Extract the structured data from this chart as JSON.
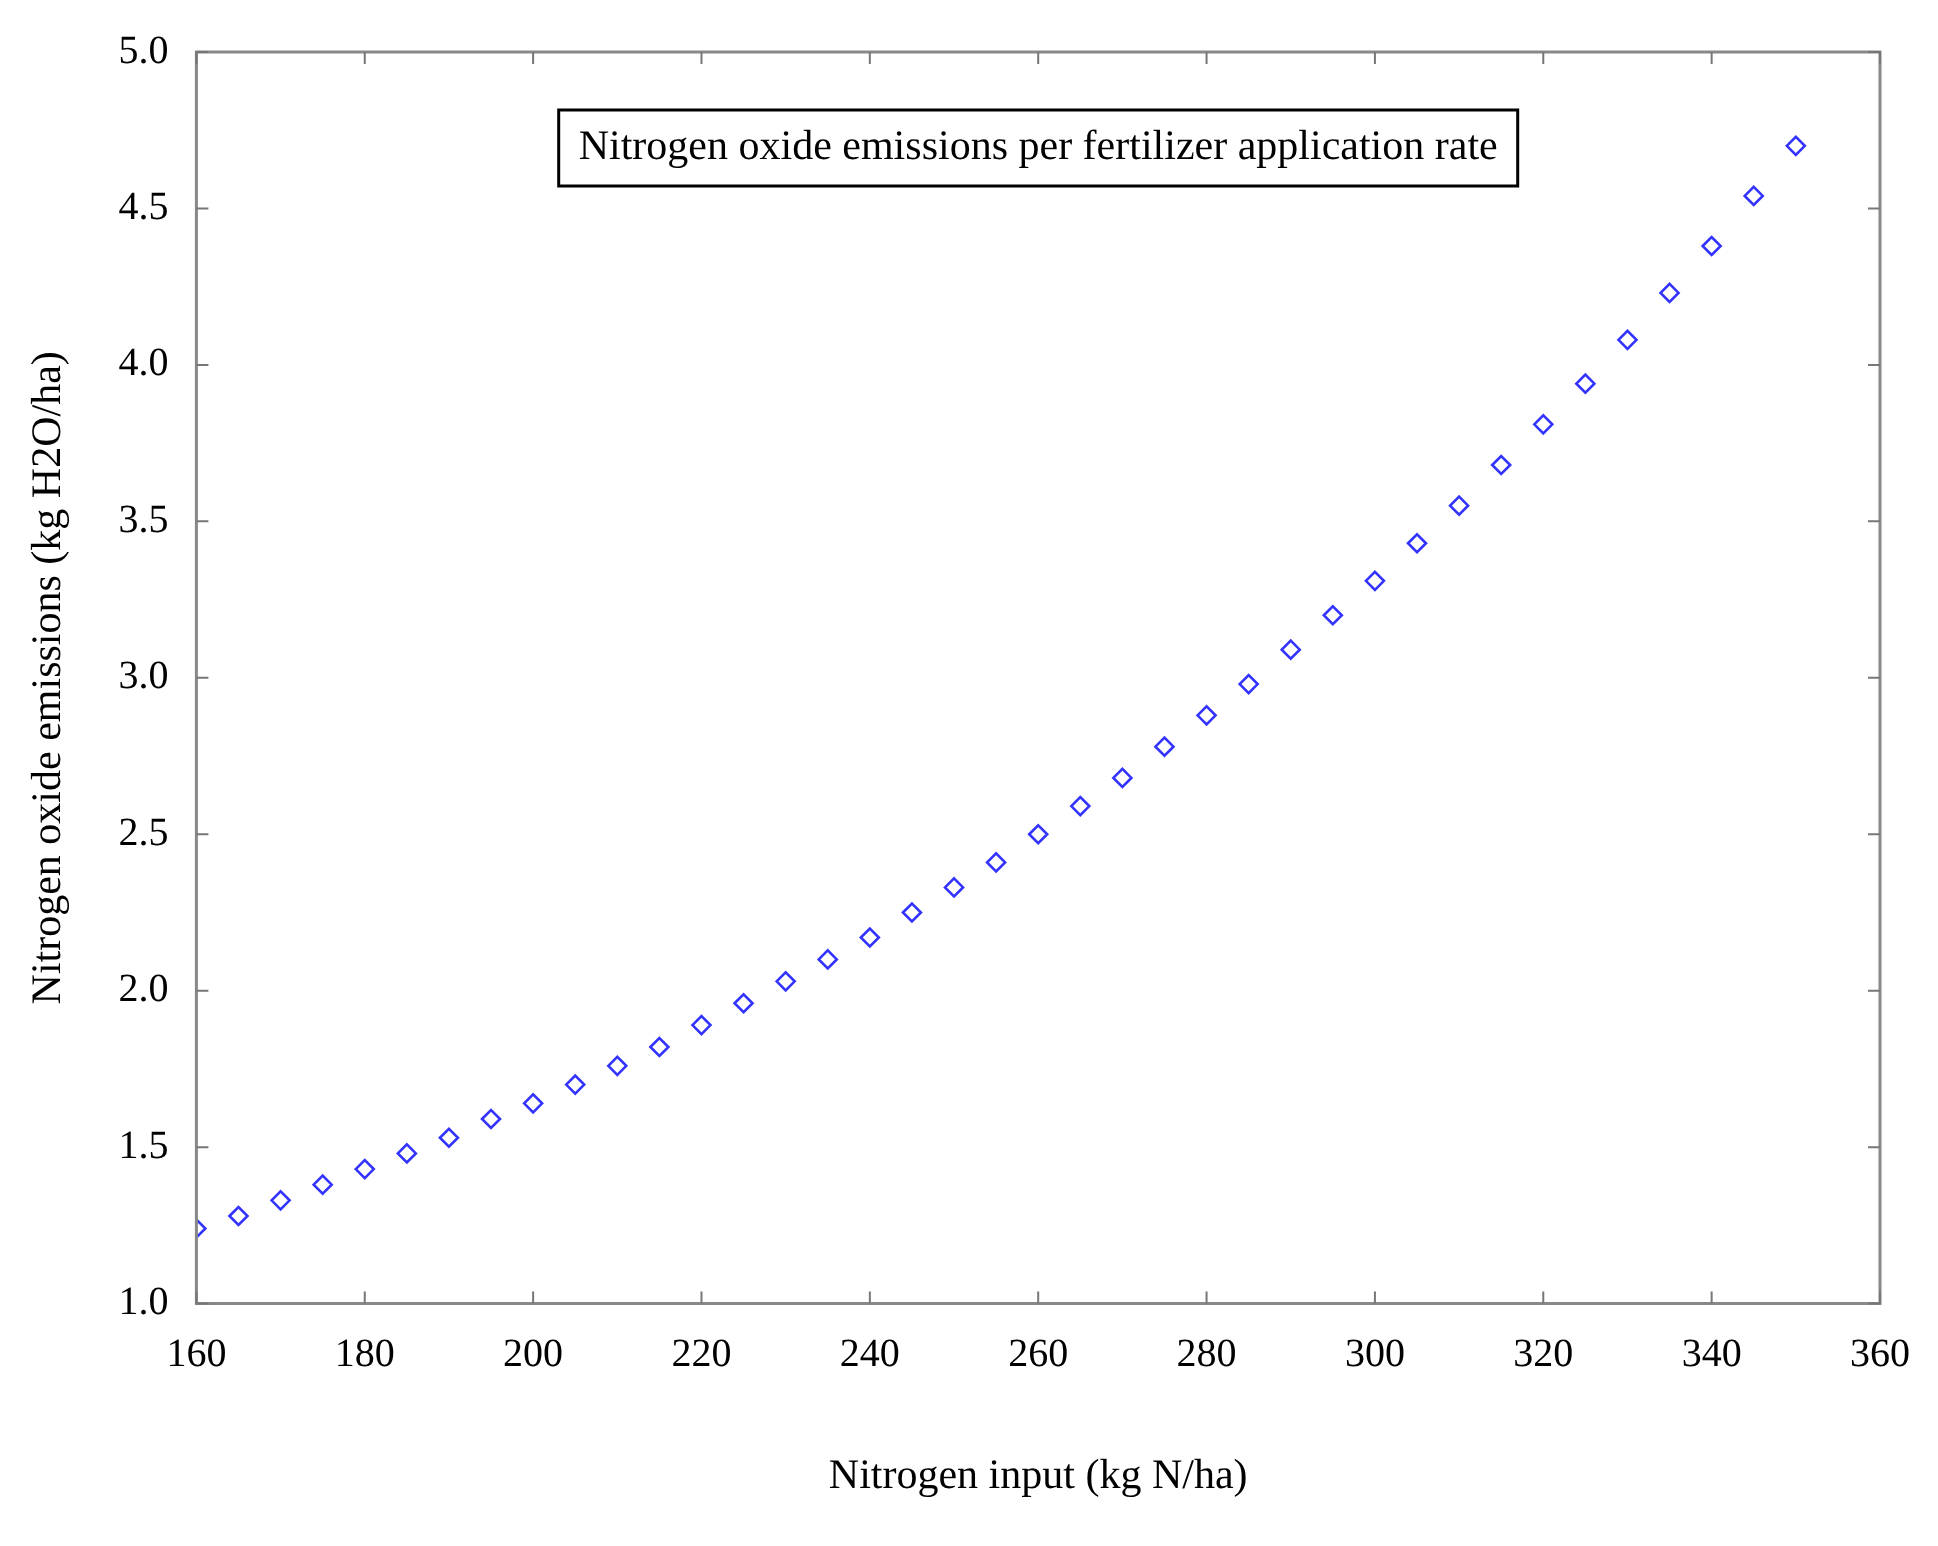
{
  "chart_data": {
    "type": "scatter",
    "title": "Nitrogen oxide emissions per fertilizer application rate",
    "xlabel": "Nitrogen input (kg N/ha)",
    "ylabel": "Nitrogen oxide emissions (kg H2O/ha)",
    "x": [
      160,
      165,
      170,
      175,
      180,
      185,
      190,
      195,
      200,
      205,
      210,
      215,
      220,
      225,
      230,
      235,
      240,
      245,
      250,
      255,
      260,
      265,
      270,
      275,
      280,
      285,
      290,
      295,
      300,
      305,
      310,
      315,
      320,
      325,
      330,
      335,
      340,
      345,
      350
    ],
    "series": [
      {
        "color": "#3333ff",
        "values": [
          1.24,
          1.28,
          1.33,
          1.38,
          1.43,
          1.48,
          1.53,
          1.59,
          1.64,
          1.7,
          1.76,
          1.82,
          1.89,
          1.96,
          2.03,
          2.1,
          2.17,
          2.25,
          2.33,
          2.41,
          2.5,
          2.59,
          2.68,
          2.78,
          2.88,
          2.98,
          3.09,
          3.2,
          3.31,
          3.43,
          3.55,
          3.68,
          3.81,
          3.94,
          4.08,
          4.23,
          4.38,
          4.54,
          4.7
        ]
      }
    ],
    "xlim": [
      160,
      360
    ],
    "xticks": [
      160,
      180,
      200,
      220,
      240,
      260,
      280,
      300,
      320,
      340,
      360
    ],
    "ylim": [
      1,
      5
    ],
    "yticks": [
      {
        "value": 1,
        "label": "1.0"
      },
      {
        "value": 1.5,
        "label": "1.5"
      },
      {
        "value": 2,
        "label": "2.0"
      },
      {
        "value": 2.5,
        "label": "2.5"
      },
      {
        "value": 3,
        "label": "3.0"
      },
      {
        "value": 3.5,
        "label": "3.5"
      },
      {
        "value": 4,
        "label": "4.0"
      },
      {
        "value": 4.5,
        "label": "4.5"
      },
      {
        "value": 5,
        "label": "5.0"
      }
    ],
    "marker": "diamond",
    "grid": false,
    "legend": false
  }
}
